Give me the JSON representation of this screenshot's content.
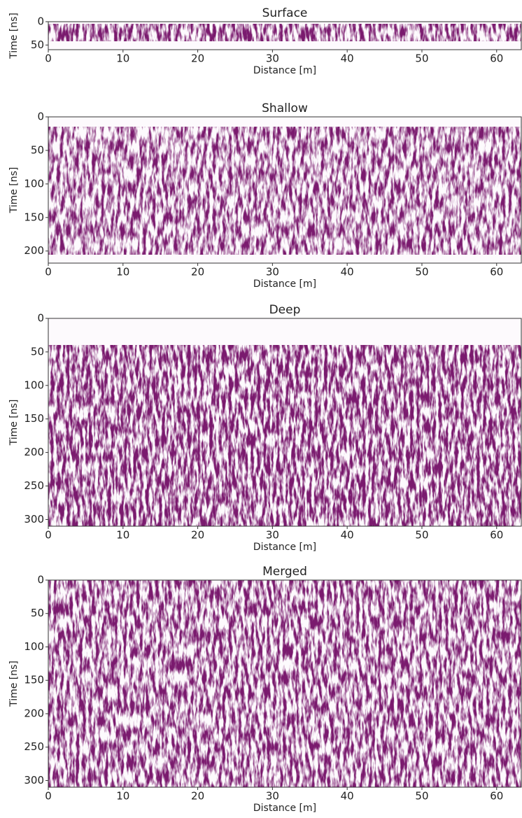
{
  "chart_data": [
    {
      "type": "heatmap",
      "title": "Surface",
      "xlabel": "Distance [m]",
      "ylabel": "Time [ns]",
      "xlim": [
        0,
        63.3
      ],
      "ylim": [
        60,
        0
      ],
      "xticks": [
        0,
        10,
        20,
        30,
        40,
        50,
        60
      ],
      "yticks": [
        0,
        50
      ],
      "image": {
        "xrange": [
          0,
          63.3
        ],
        "yrange": [
          5,
          42
        ]
      },
      "color": "#7a1a6e",
      "intensity": 0.9
    },
    {
      "type": "heatmap",
      "title": "Shallow",
      "xlabel": "Distance [m]",
      "ylabel": "Time [ns]",
      "xlim": [
        0,
        63.3
      ],
      "ylim": [
        218,
        0
      ],
      "xticks": [
        0,
        10,
        20,
        30,
        40,
        50,
        60
      ],
      "yticks": [
        0,
        50,
        100,
        150,
        200
      ],
      "image": {
        "xrange": [
          0,
          63.3
        ],
        "yrange": [
          15,
          205
        ]
      },
      "color": "#7a1a6e",
      "intensity": 0.6
    },
    {
      "type": "heatmap",
      "title": "Deep",
      "xlabel": "Distance [m]",
      "ylabel": "Time [ns]",
      "xlim": [
        0,
        63.3
      ],
      "ylim": [
        310,
        0
      ],
      "xticks": [
        0,
        10,
        20,
        30,
        40,
        50,
        60
      ],
      "yticks": [
        0,
        50,
        100,
        150,
        200,
        250,
        300
      ],
      "image": {
        "xrange": [
          0,
          63.3
        ],
        "yrange": [
          40,
          310
        ]
      },
      "color": "#7a1a6e",
      "intensity": 1.0
    },
    {
      "type": "heatmap",
      "title": "Merged",
      "xlabel": "Distance [m]",
      "ylabel": "Time [ns]",
      "xlim": [
        0,
        63.3
      ],
      "ylim": [
        310,
        0
      ],
      "xticks": [
        0,
        10,
        20,
        30,
        40,
        50,
        60
      ],
      "yticks": [
        0,
        50,
        100,
        150,
        200,
        250,
        300
      ],
      "image": {
        "xrange": [
          0,
          63.3
        ],
        "yrange": [
          0,
          310
        ]
      },
      "color": "#7a1a6e",
      "intensity": 0.75
    }
  ]
}
